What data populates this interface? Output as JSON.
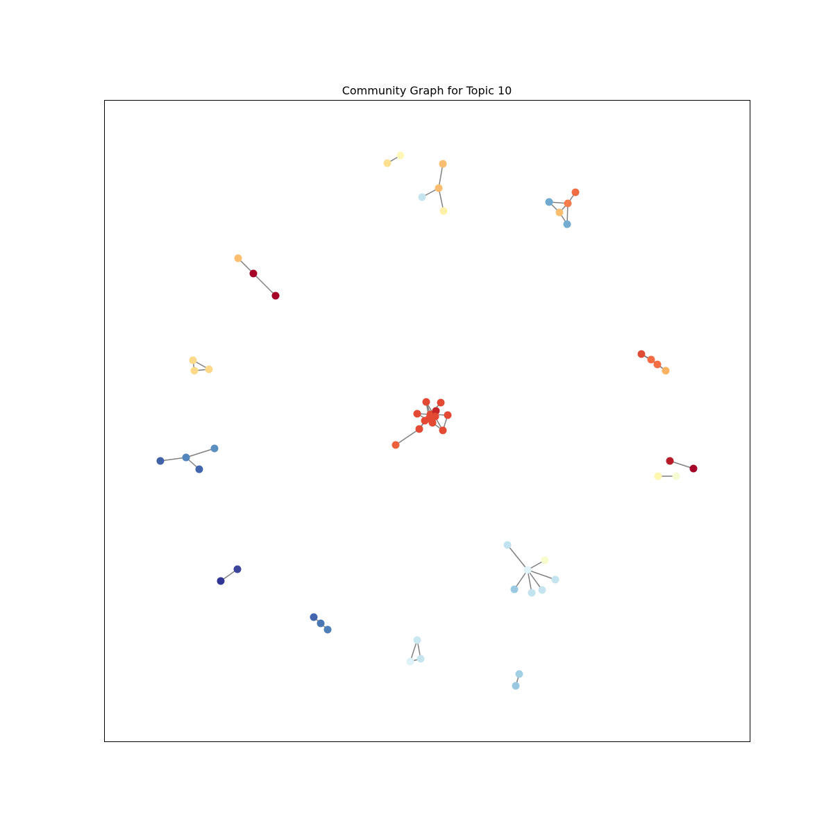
{
  "title": "Community Graph for Topic 10",
  "edge_color": "#808080",
  "nodes": [
    {
      "id": "a1",
      "color": "#fee090"
    },
    {
      "id": "a2",
      "color": "#fff7b8"
    },
    {
      "id": "b1",
      "color": "#f9bd6f"
    },
    {
      "id": "b2",
      "color": "#fdbb6d"
    },
    {
      "id": "b3",
      "color": "#c6e4f0"
    },
    {
      "id": "b4",
      "color": "#fff2a8"
    },
    {
      "id": "c1",
      "color": "#f26d44"
    },
    {
      "id": "c2",
      "color": "#6fa8d0"
    },
    {
      "id": "c3",
      "color": "#f57e4a"
    },
    {
      "id": "c4",
      "color": "#fdbe70"
    },
    {
      "id": "c5",
      "color": "#74add1"
    },
    {
      "id": "d1",
      "color": "#fdbe70"
    },
    {
      "id": "d2",
      "color": "#a50026"
    },
    {
      "id": "d3",
      "color": "#a50026"
    },
    {
      "id": "e1",
      "color": "#fed98a"
    },
    {
      "id": "e2",
      "color": "#fed98a"
    },
    {
      "id": "e3",
      "color": "#fed98a"
    },
    {
      "id": "f1",
      "color": "#e04b33"
    },
    {
      "id": "f2",
      "color": "#f46d43"
    },
    {
      "id": "f3",
      "color": "#f46d43"
    },
    {
      "id": "f4",
      "color": "#fdb163"
    },
    {
      "id": "g1",
      "color": "#e34933"
    },
    {
      "id": "g2",
      "color": "#e34933"
    },
    {
      "id": "g3",
      "color": "#c62427"
    },
    {
      "id": "g4",
      "color": "#e34933"
    },
    {
      "id": "g5",
      "color": "#e34933"
    },
    {
      "id": "g6",
      "color": "#e34933"
    },
    {
      "id": "g7",
      "color": "#e34933"
    },
    {
      "id": "g8",
      "color": "#e34933"
    },
    {
      "id": "g9",
      "color": "#e34933"
    },
    {
      "id": "g10",
      "color": "#e34933"
    },
    {
      "id": "g11",
      "color": "#e34933"
    },
    {
      "id": "g12",
      "color": "#e34933"
    },
    {
      "id": "g13",
      "color": "#ee613d"
    },
    {
      "id": "h1",
      "color": "#5b8fc2"
    },
    {
      "id": "h2",
      "color": "#3f62a8"
    },
    {
      "id": "h3",
      "color": "#5286bd"
    },
    {
      "id": "h4",
      "color": "#4166ad"
    },
    {
      "id": "i1",
      "color": "#b71b27"
    },
    {
      "id": "i2",
      "color": "#a50026"
    },
    {
      "id": "i3",
      "color": "#fff6b0"
    },
    {
      "id": "i4",
      "color": "#f7fbd2"
    },
    {
      "id": "j1",
      "color": "#c2e2ef"
    },
    {
      "id": "j2",
      "color": "#f8fccc"
    },
    {
      "id": "j3",
      "color": "#e0f3f8"
    },
    {
      "id": "j4",
      "color": "#c6e4f0"
    },
    {
      "id": "j5",
      "color": "#9bc9e1"
    },
    {
      "id": "j6",
      "color": "#c6e4f0"
    },
    {
      "id": "j7",
      "color": "#c2e2ef"
    },
    {
      "id": "k1",
      "color": "#3a459b"
    },
    {
      "id": "k2",
      "color": "#313695"
    },
    {
      "id": "l1",
      "color": "#4367ae"
    },
    {
      "id": "l2",
      "color": "#4a77b4"
    },
    {
      "id": "l3",
      "color": "#4e7fb9"
    },
    {
      "id": "m1",
      "color": "#c9e6f1"
    },
    {
      "id": "m2",
      "color": "#dff2f7"
    },
    {
      "id": "m3",
      "color": "#c6e4f0"
    },
    {
      "id": "n1",
      "color": "#a2cfe4"
    },
    {
      "id": "n2",
      "color": "#9ac8e0"
    }
  ],
  "edges": [
    [
      "a1",
      "a2"
    ],
    [
      "b1",
      "b2"
    ],
    [
      "b2",
      "b3"
    ],
    [
      "b2",
      "b4"
    ],
    [
      "c1",
      "c3"
    ],
    [
      "c2",
      "c3"
    ],
    [
      "c2",
      "c4"
    ],
    [
      "c3",
      "c4"
    ],
    [
      "c3",
      "c5"
    ],
    [
      "c4",
      "c5"
    ],
    [
      "d1",
      "d2"
    ],
    [
      "d2",
      "d3"
    ],
    [
      "e1",
      "e2"
    ],
    [
      "e1",
      "e3"
    ],
    [
      "e2",
      "e3"
    ],
    [
      "f1",
      "f2"
    ],
    [
      "f1",
      "f3"
    ],
    [
      "f2",
      "f3"
    ],
    [
      "f3",
      "f4"
    ],
    [
      "f2",
      "f4"
    ],
    [
      "g13",
      "g8"
    ],
    [
      "g1",
      "g2"
    ],
    [
      "g1",
      "g3"
    ],
    [
      "g1",
      "g4"
    ],
    [
      "g1",
      "g5"
    ],
    [
      "g1",
      "g6"
    ],
    [
      "g1",
      "g7"
    ],
    [
      "g1",
      "g8"
    ],
    [
      "g1",
      "g9"
    ],
    [
      "g2",
      "g10"
    ],
    [
      "g3",
      "g11"
    ],
    [
      "g4",
      "g12"
    ],
    [
      "g5",
      "g9"
    ],
    [
      "g6",
      "g10"
    ],
    [
      "g7",
      "g11"
    ],
    [
      "g8",
      "g12"
    ],
    [
      "g9",
      "g10"
    ],
    [
      "g11",
      "g12"
    ],
    [
      "g2",
      "g7"
    ],
    [
      "g3",
      "g9"
    ],
    [
      "h2",
      "h3"
    ],
    [
      "h3",
      "h1"
    ],
    [
      "h3",
      "h4"
    ],
    [
      "i1",
      "i2"
    ],
    [
      "i3",
      "i4"
    ],
    [
      "j1",
      "j3"
    ],
    [
      "j2",
      "j3"
    ],
    [
      "j3",
      "j4"
    ],
    [
      "j3",
      "j5"
    ],
    [
      "j3",
      "j6"
    ],
    [
      "j3",
      "j7"
    ],
    [
      "k1",
      "k2"
    ],
    [
      "l1",
      "l2"
    ],
    [
      "l2",
      "l3"
    ],
    [
      "m1",
      "m2"
    ],
    [
      "m1",
      "m3"
    ],
    [
      "m2",
      "m3"
    ],
    [
      "n1",
      "n2"
    ]
  ]
}
